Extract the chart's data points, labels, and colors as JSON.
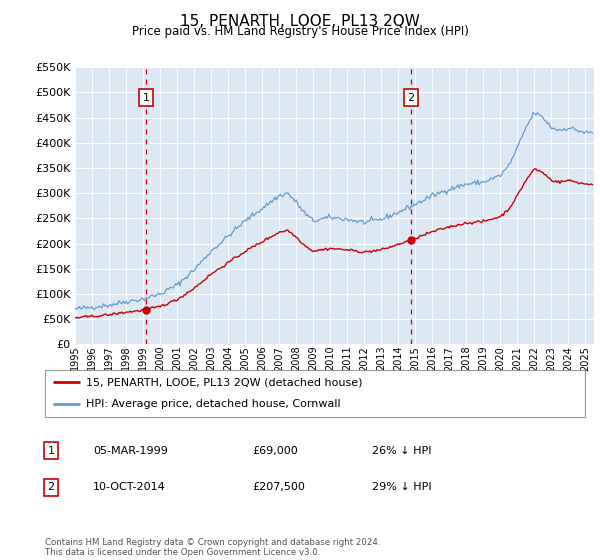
{
  "title": "15, PENARTH, LOOE, PL13 2QW",
  "subtitle": "Price paid vs. HM Land Registry's House Price Index (HPI)",
  "plot_bg_color": "#dce9f5",
  "ylim": [
    0,
    550000
  ],
  "yticks": [
    0,
    50000,
    100000,
    150000,
    200000,
    250000,
    300000,
    350000,
    400000,
    450000,
    500000,
    550000
  ],
  "sale1_x": 1999.17,
  "sale1_label": "05-MAR-1999",
  "sale1_price": 69000,
  "sale1_note": "26% ↓ HPI",
  "sale2_x": 2014.75,
  "sale2_label": "10-OCT-2014",
  "sale2_price": 207500,
  "sale2_note": "29% ↓ HPI",
  "legend_line1": "15, PENARTH, LOOE, PL13 2QW (detached house)",
  "legend_line2": "HPI: Average price, detached house, Cornwall",
  "footer": "Contains HM Land Registry data © Crown copyright and database right 2024.\nThis data is licensed under the Open Government Licence v3.0.",
  "red_color": "#cc0000",
  "blue_color": "#6699cc",
  "dashed_color": "#cc0000",
  "xstart": 1995,
  "xend": 2025.5
}
